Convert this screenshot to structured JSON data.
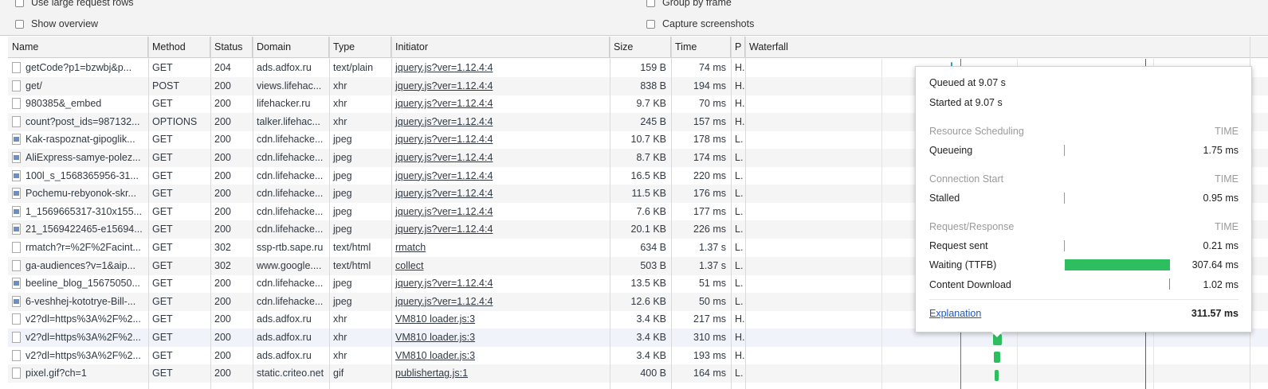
{
  "settings": {
    "large_rows": "Use large request rows",
    "show_overview": "Show overview",
    "group_by_frame": "Group by frame",
    "capture_screenshots": "Capture screenshots"
  },
  "columns": {
    "name": "Name",
    "method": "Method",
    "status": "Status",
    "domain": "Domain",
    "type": "Type",
    "initiator": "Initiator",
    "size": "Size",
    "time": "Time",
    "priority": "P",
    "waterfall": "Waterfall"
  },
  "rows": [
    {
      "name": "getCode?p1=bzwbj&p...",
      "method": "GET",
      "status": "204",
      "domain": "ads.adfox.ru",
      "type": "text/plain",
      "initiator": "jquery.js?ver=1.12.4:4",
      "size": "159 B",
      "time": "74 ms",
      "priority": "H.",
      "icon": "file-icon"
    },
    {
      "name": "get/",
      "method": "POST",
      "status": "200",
      "domain": "views.lifehac...",
      "type": "xhr",
      "initiator": "jquery.js?ver=1.12.4:4",
      "size": "838 B",
      "time": "194 ms",
      "priority": "H.",
      "icon": "file-icon"
    },
    {
      "name": "980385&_embed",
      "method": "GET",
      "status": "200",
      "domain": "lifehacker.ru",
      "type": "xhr",
      "initiator": "jquery.js?ver=1.12.4:4",
      "size": "9.7 KB",
      "time": "70 ms",
      "priority": "H.",
      "icon": "file-icon"
    },
    {
      "name": "count?post_ids=987132...",
      "method": "OPTIONS",
      "status": "200",
      "domain": "talker.lifehac...",
      "type": "xhr",
      "initiator": "jquery.js?ver=1.12.4:4",
      "size": "245 B",
      "time": "157 ms",
      "priority": "H.",
      "icon": "file-icon"
    },
    {
      "name": "Kak-raspoznat-gipoglik...",
      "method": "GET",
      "status": "200",
      "domain": "cdn.lifehacke...",
      "type": "jpeg",
      "initiator": "jquery.js?ver=1.12.4:4",
      "size": "10.7 KB",
      "time": "178 ms",
      "priority": "L.",
      "icon": "image-icon"
    },
    {
      "name": "AliExpress-samye-polez...",
      "method": "GET",
      "status": "200",
      "domain": "cdn.lifehacke...",
      "type": "jpeg",
      "initiator": "jquery.js?ver=1.12.4:4",
      "size": "8.7 KB",
      "time": "174 ms",
      "priority": "L.",
      "icon": "image-icon"
    },
    {
      "name": "100l_s_1568365956-31...",
      "method": "GET",
      "status": "200",
      "domain": "cdn.lifehacke...",
      "type": "jpeg",
      "initiator": "jquery.js?ver=1.12.4:4",
      "size": "16.5 KB",
      "time": "220 ms",
      "priority": "L.",
      "icon": "image-icon"
    },
    {
      "name": "Pochemu-rebyonok-skr...",
      "method": "GET",
      "status": "200",
      "domain": "cdn.lifehacke...",
      "type": "jpeg",
      "initiator": "jquery.js?ver=1.12.4:4",
      "size": "11.5 KB",
      "time": "176 ms",
      "priority": "L.",
      "icon": "image-icon"
    },
    {
      "name": "1_1569665317-310x155...",
      "method": "GET",
      "status": "200",
      "domain": "cdn.lifehacke...",
      "type": "jpeg",
      "initiator": "jquery.js?ver=1.12.4:4",
      "size": "7.6 KB",
      "time": "177 ms",
      "priority": "L.",
      "icon": "image-icon"
    },
    {
      "name": "21_1569422465-e15694...",
      "method": "GET",
      "status": "200",
      "domain": "cdn.lifehacke...",
      "type": "jpeg",
      "initiator": "jquery.js?ver=1.12.4:4",
      "size": "20.1 KB",
      "time": "226 ms",
      "priority": "L.",
      "icon": "image-icon"
    },
    {
      "name": "rmatch?r=%2F%2Facint...",
      "method": "GET",
      "status": "302",
      "domain": "ssp-rtb.sape.ru",
      "type": "text/html",
      "initiator": "rmatch",
      "size": "634 B",
      "time": "1.37 s",
      "priority": "L.",
      "icon": "file-icon"
    },
    {
      "name": "ga-audiences?v=1&aip...",
      "method": "GET",
      "status": "302",
      "domain": "www.google....",
      "type": "text/html",
      "initiator": "collect",
      "size": "503 B",
      "time": "1.37 s",
      "priority": "L.",
      "icon": "file-icon"
    },
    {
      "name": "beeline_blog_15675050...",
      "method": "GET",
      "status": "200",
      "domain": "cdn.lifehacke...",
      "type": "jpeg",
      "initiator": "jquery.js?ver=1.12.4:4",
      "size": "13.5 KB",
      "time": "51 ms",
      "priority": "L.",
      "icon": "image-icon"
    },
    {
      "name": "6-veshhej-kototrye-Bill-...",
      "method": "GET",
      "status": "200",
      "domain": "cdn.lifehacke...",
      "type": "jpeg",
      "initiator": "jquery.js?ver=1.12.4:4",
      "size": "12.6 KB",
      "time": "50 ms",
      "priority": "L.",
      "icon": "image-icon"
    },
    {
      "name": "v2?dl=https%3A%2F%2...",
      "method": "GET",
      "status": "200",
      "domain": "ads.adfox.ru",
      "type": "xhr",
      "initiator": "VM810 loader.js:3",
      "size": "3.4 KB",
      "time": "217 ms",
      "priority": "H.",
      "icon": "file-icon"
    },
    {
      "name": "v2?dl=https%3A%2F%2...",
      "method": "GET",
      "status": "200",
      "domain": "ads.adfox.ru",
      "type": "xhr",
      "initiator": "VM810 loader.js:3",
      "size": "3.4 KB",
      "time": "310 ms",
      "priority": "H.",
      "icon": "file-icon"
    },
    {
      "name": "v2?dl=https%3A%2F%2...",
      "method": "GET",
      "status": "200",
      "domain": "ads.adfox.ru",
      "type": "xhr",
      "initiator": "VM810 loader.js:3",
      "size": "3.4 KB",
      "time": "193 ms",
      "priority": "H.",
      "icon": "file-icon"
    },
    {
      "name": "pixel.gif?ch=1",
      "method": "GET",
      "status": "200",
      "domain": "static.criteo.net",
      "type": "gif",
      "initiator": "publishertag.js:1",
      "size": "400 B",
      "time": "164 ms",
      "priority": "L.",
      "icon": "file-icon"
    }
  ],
  "timing": {
    "queued_at": "Queued at 9.07 s",
    "started_at": "Started at 9.07 s",
    "resource_scheduling": "Resource Scheduling",
    "connection_start": "Connection Start",
    "request_response": "Request/Response",
    "time_label": "TIME",
    "queueing_label": "Queueing",
    "queueing_value": "1.75 ms",
    "stalled_label": "Stalled",
    "stalled_value": "0.95 ms",
    "request_sent_label": "Request sent",
    "request_sent_value": "0.21 ms",
    "waiting_label": "Waiting (TTFB)",
    "waiting_value": "307.64 ms",
    "download_label": "Content Download",
    "download_value": "1.02 ms",
    "explanation": "Explanation",
    "total": "311.57 ms"
  },
  "colors": {
    "waiting_bar": "#2dbe60",
    "dom_loaded_line": "#3a78d8",
    "load_line": "#b8383b"
  }
}
